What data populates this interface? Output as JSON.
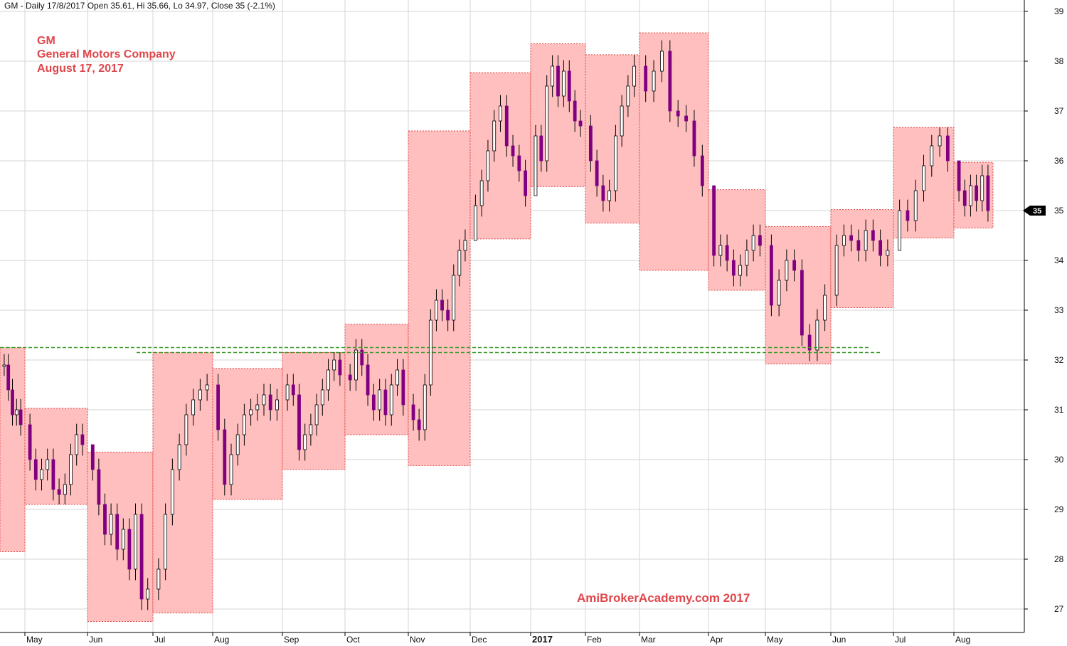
{
  "header": "GM - Daily 17/8/2017 Open 35.61, Hi 35.66, Lo 34.97, Close 35 (-2.1%)",
  "annotation": {
    "ticker": "GM",
    "company": "General Motors Company",
    "date": "August 17, 2017"
  },
  "watermark": "AmiBrokerAcademy.com  2017",
  "colors": {
    "box_fill": "#ffbcbc",
    "box_border": "#e04545",
    "candle_down": "#800080",
    "candle_up": "#ffffff",
    "candle_outline": "#000000",
    "support_line": "#3a9a28",
    "grid": "#d6d6d6",
    "annotation_text": "#e0474c",
    "price_marker_bg": "#000000"
  },
  "chart_data": {
    "type": "candlestick",
    "title": "GM - Daily 17/8/2017",
    "ohlc_last": {
      "open": 35.61,
      "high": 35.66,
      "low": 34.97,
      "close": 35,
      "change_pct": -2.1
    },
    "ylim": [
      26.5,
      39.2
    ],
    "y_ticks": [
      27,
      28,
      29,
      30,
      31,
      32,
      33,
      34,
      35,
      36,
      37,
      38,
      39
    ],
    "x_ticks": [
      "May",
      "Jun",
      "Jul",
      "Aug",
      "Sep",
      "Oct",
      "Nov",
      "Dec",
      "2017",
      "Feb",
      "Mar",
      "Apr",
      "May",
      "Jun",
      "Jul",
      "Aug"
    ],
    "x_ticks_bold": [
      "2017"
    ],
    "current_price_label": "35",
    "grid": true,
    "monthly_ranges": [
      {
        "month": "Apr 2016",
        "low": 28.15,
        "high": 32.25
      },
      {
        "month": "May 2016",
        "low": 29.1,
        "high": 31.03
      },
      {
        "month": "Jun 2016",
        "low": 26.75,
        "high": 30.15
      },
      {
        "month": "Jul 2016",
        "low": 26.92,
        "high": 32.15
      },
      {
        "month": "Aug 2016",
        "low": 29.2,
        "high": 31.83
      },
      {
        "month": "Sep 2016",
        "low": 29.8,
        "high": 32.15
      },
      {
        "month": "Oct 2016",
        "low": 30.5,
        "high": 32.72
      },
      {
        "month": "Nov 2016",
        "low": 29.88,
        "high": 36.6
      },
      {
        "month": "Dec 2016",
        "low": 34.43,
        "high": 37.77
      },
      {
        "month": "Jan 2017",
        "low": 35.48,
        "high": 38.35
      },
      {
        "month": "Feb 2017",
        "low": 34.75,
        "high": 38.13
      },
      {
        "month": "Mar 2017",
        "low": 33.8,
        "high": 38.57
      },
      {
        "month": "Apr 2017",
        "low": 33.4,
        "high": 35.42
      },
      {
        "month": "May 2017",
        "low": 31.92,
        "high": 34.68
      },
      {
        "month": "Jun 2017",
        "low": 33.05,
        "high": 35.02
      },
      {
        "month": "Jul 2017",
        "low": 34.45,
        "high": 36.67
      },
      {
        "month": "Aug 2017",
        "low": 34.65,
        "high": 35.97
      }
    ],
    "support_lines": [
      32.25,
      32.15
    ],
    "close_path": [
      {
        "month": "Apr 2016",
        "closes": [
          31.9,
          31.4,
          30.9,
          31.0,
          30.7
        ]
      },
      {
        "month": "May 2016",
        "closes": [
          30.0,
          29.6,
          29.8,
          30.0,
          29.4,
          29.3,
          29.5,
          30.1,
          30.5,
          30.3
        ]
      },
      {
        "month": "Jun 2016",
        "closes": [
          29.8,
          29.1,
          28.5,
          28.9,
          28.2,
          28.6,
          27.8,
          28.9,
          27.2,
          27.4
        ]
      },
      {
        "month": "Jul 2016",
        "closes": [
          27.8,
          28.9,
          29.8,
          30.3,
          30.9,
          31.2,
          31.4,
          31.5
        ]
      },
      {
        "month": "Aug 2016",
        "closes": [
          30.6,
          29.5,
          30.1,
          30.5,
          30.9,
          31.0,
          31.1,
          31.3,
          31.0,
          31.2
        ]
      },
      {
        "month": "Sep 2016",
        "closes": [
          31.5,
          31.3,
          30.2,
          30.5,
          30.7,
          31.1,
          31.4,
          31.8,
          32.0,
          31.7
        ]
      },
      {
        "month": "Oct 2016",
        "closes": [
          31.6,
          32.2,
          31.9,
          31.3,
          31.0,
          31.4,
          30.9,
          31.5,
          31.8,
          31.1
        ]
      },
      {
        "month": "Nov 2016",
        "closes": [
          30.8,
          30.6,
          31.5,
          32.8,
          33.2,
          33.0,
          32.8,
          33.7,
          34.2,
          34.4
        ]
      },
      {
        "month": "Dec 2016",
        "closes": [
          35.1,
          35.6,
          36.2,
          36.8,
          37.1,
          36.3,
          36.1,
          35.8,
          35.3
        ]
      },
      {
        "month": "Jan 2017",
        "closes": [
          36.5,
          36.0,
          37.5,
          37.9,
          37.3,
          37.8,
          37.2,
          36.8,
          36.7
        ]
      },
      {
        "month": "Feb 2017",
        "closes": [
          36.0,
          35.5,
          35.2,
          35.4,
          36.5,
          37.1,
          37.5,
          37.9
        ]
      },
      {
        "month": "Mar 2017",
        "closes": [
          37.4,
          37.8,
          38.2,
          37.0,
          36.9,
          36.8,
          36.1,
          35.5
        ]
      },
      {
        "month": "Apr 2017",
        "closes": [
          34.1,
          34.3,
          34.0,
          33.7,
          33.9,
          34.2,
          34.5,
          34.3
        ]
      },
      {
        "month": "May 2017",
        "closes": [
          33.1,
          33.6,
          34.0,
          33.8,
          32.5,
          32.2,
          32.8,
          33.3
        ]
      },
      {
        "month": "Jun 2017",
        "closes": [
          34.3,
          34.5,
          34.4,
          34.2,
          34.6,
          34.4,
          34.1,
          34.2
        ]
      },
      {
        "month": "Jul 2017",
        "closes": [
          35.0,
          34.8,
          35.4,
          35.9,
          36.3,
          36.5,
          36.0
        ]
      },
      {
        "month": "Aug 2017",
        "closes": [
          35.4,
          35.1,
          35.5,
          35.2,
          35.7,
          35.0
        ]
      }
    ]
  }
}
